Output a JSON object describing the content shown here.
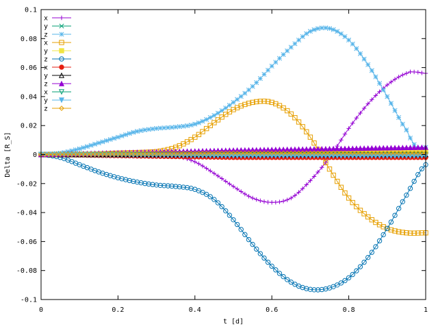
{
  "chart_data": {
    "type": "line",
    "title": "",
    "xlabel": "t [d]",
    "ylabel": "Delta [R_S]",
    "xlim": [
      0,
      1
    ],
    "ylim": [
      -0.1,
      0.1
    ],
    "x_ticks": [
      "0",
      "0.2",
      "0.4",
      "0.6",
      "0.8",
      "1"
    ],
    "y_ticks": [
      "-0.1",
      "-0.08",
      "-0.06",
      "-0.04",
      "-0.02",
      "0",
      "0.02",
      "0.04",
      "0.06",
      "0.08",
      "0.1"
    ],
    "grid": false,
    "legend_position": "top-left",
    "series": [
      {
        "name": "x",
        "color": "#9400d3",
        "marker": "plus",
        "x": [
          0,
          0.1,
          0.2,
          0.3,
          0.35,
          0.4,
          0.45,
          0.5,
          0.55,
          0.6,
          0.65,
          0.7,
          0.75,
          0.8,
          0.85,
          0.9,
          0.95,
          0.97,
          1.0
        ],
        "y": [
          0,
          0,
          0,
          0,
          -0.001,
          -0.005,
          -0.013,
          -0.022,
          -0.03,
          -0.033,
          -0.03,
          -0.018,
          -0.002,
          0.018,
          0.035,
          0.048,
          0.056,
          0.057,
          0.056
        ]
      },
      {
        "name": "y",
        "color": "#009e73",
        "marker": "x",
        "x": [
          0,
          0.5,
          1.0
        ],
        "y": [
          0,
          0,
          0
        ]
      },
      {
        "name": "z",
        "color": "#56b4e9",
        "marker": "star",
        "x": [
          0,
          0.05,
          0.1,
          0.15,
          0.2,
          0.25,
          0.3,
          0.35,
          0.4,
          0.45,
          0.5,
          0.55,
          0.6,
          0.65,
          0.7,
          0.75,
          0.8,
          0.85,
          0.9,
          0.95,
          0.98,
          1.0
        ],
        "y": [
          0,
          0.001,
          0.004,
          0.008,
          0.012,
          0.016,
          0.018,
          0.019,
          0.021,
          0.027,
          0.036,
          0.047,
          0.061,
          0.074,
          0.085,
          0.087,
          0.079,
          0.062,
          0.04,
          0.017,
          0.004,
          0.005
        ]
      },
      {
        "name": "x",
        "color": "#e69f00",
        "marker": "square",
        "x": [
          0,
          0.1,
          0.2,
          0.3,
          0.35,
          0.4,
          0.45,
          0.5,
          0.55,
          0.6,
          0.65,
          0.7,
          0.75,
          0.8,
          0.85,
          0.9,
          0.95,
          1.0
        ],
        "y": [
          0,
          0,
          0.001,
          0.002,
          0.005,
          0.012,
          0.022,
          0.031,
          0.036,
          0.036,
          0.028,
          0.012,
          -0.01,
          -0.03,
          -0.043,
          -0.051,
          -0.054,
          -0.054
        ]
      },
      {
        "name": "y",
        "color": "#f0e442",
        "marker": "filled-square",
        "x": [
          0,
          0.5,
          1.0
        ],
        "y": [
          0,
          0.001,
          0.002
        ]
      },
      {
        "name": "z",
        "color": "#0072b2",
        "marker": "circle",
        "x": [
          0,
          0.05,
          0.1,
          0.15,
          0.2,
          0.25,
          0.3,
          0.35,
          0.4,
          0.45,
          0.5,
          0.55,
          0.6,
          0.65,
          0.7,
          0.75,
          0.8,
          0.85,
          0.9,
          0.95,
          1.0
        ],
        "y": [
          0,
          -0.002,
          -0.007,
          -0.012,
          -0.016,
          -0.019,
          -0.021,
          -0.022,
          -0.024,
          -0.031,
          -0.045,
          -0.062,
          -0.077,
          -0.088,
          -0.093,
          -0.092,
          -0.085,
          -0.071,
          -0.051,
          -0.028,
          -0.007
        ]
      },
      {
        "name": "x",
        "color": "#e51e10",
        "marker": "filled-circle",
        "x": [
          0,
          0.5,
          1.0
        ],
        "y": [
          0,
          -0.002,
          -0.002
        ]
      },
      {
        "name": "y",
        "color": "#000000",
        "marker": "triangle",
        "x": [
          0,
          0.5,
          1.0
        ],
        "y": [
          0,
          0,
          0
        ]
      },
      {
        "name": "z",
        "color": "#9400d3",
        "marker": "filled-triangle",
        "x": [
          0,
          0.5,
          1.0
        ],
        "y": [
          0,
          0.003,
          0.005
        ]
      },
      {
        "name": "x",
        "color": "#009e73",
        "marker": "triangle-down",
        "x": [
          0,
          0.5,
          1.0
        ],
        "y": [
          0,
          0,
          0
        ]
      },
      {
        "name": "y",
        "color": "#56b4e9",
        "marker": "filled-triangle-down",
        "x": [
          0,
          0.5,
          1.0
        ],
        "y": [
          0,
          -0.001,
          -0.001
        ]
      },
      {
        "name": "z",
        "color": "#e69f00",
        "marker": "diamond",
        "x": [
          0,
          0.5,
          1.0
        ],
        "y": [
          0,
          0.001,
          0.001
        ]
      }
    ]
  }
}
